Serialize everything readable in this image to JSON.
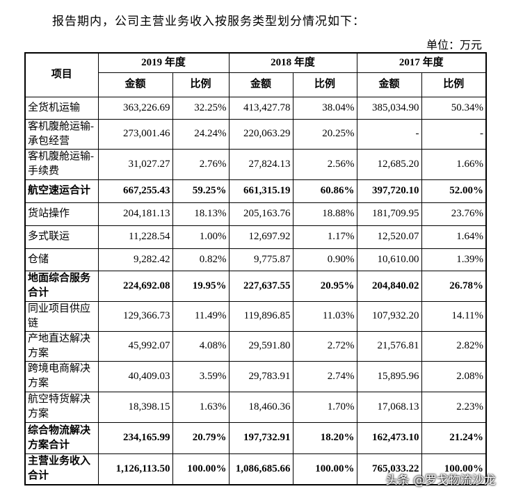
{
  "header": {
    "intro": "报告期内，公司主营业务收入按服务类型划分情况如下：",
    "unit": "单位：万元"
  },
  "table": {
    "group_header": [
      "项目",
      "2019 年度",
      "2018 年度",
      "2017 年度"
    ],
    "sub_header": [
      "金额",
      "比例",
      "金额",
      "比例",
      "金额",
      "比例"
    ],
    "rows": [
      [
        "全货机运输",
        "363,226.69",
        "32.25%",
        "413,427.78",
        "38.04%",
        "385,034.90",
        "50.34%"
      ],
      [
        "客机腹舱运输-承包经营",
        "273,001.46",
        "24.24%",
        "220,063.29",
        "20.25%",
        "-",
        "-"
      ],
      [
        "客机腹舱运输-手续费",
        "31,027.27",
        "2.76%",
        "27,824.13",
        "2.56%",
        "12,685.20",
        "1.66%"
      ],
      [
        "航空速运合计",
        "667,255.43",
        "59.25%",
        "661,315.19",
        "60.86%",
        "397,720.10",
        "52.00%"
      ],
      [
        "货站操作",
        "204,181.13",
        "18.13%",
        "205,163.76",
        "18.88%",
        "181,709.95",
        "23.76%"
      ],
      [
        "多式联运",
        "11,228.54",
        "1.00%",
        "12,697.92",
        "1.17%",
        "12,520.07",
        "1.64%"
      ],
      [
        "仓储",
        "9,282.42",
        "0.82%",
        "9,775.87",
        "0.90%",
        "10,610.00",
        "1.39%"
      ],
      [
        "地面综合服务合计",
        "224,692.08",
        "19.95%",
        "227,637.55",
        "20.95%",
        "204,840.02",
        "26.78%"
      ],
      [
        "同业项目供应链",
        "129,366.73",
        "11.49%",
        "119,896.85",
        "11.03%",
        "107,932.20",
        "14.11%"
      ],
      [
        "产地直达解决方案",
        "45,992.07",
        "4.08%",
        "29,591.80",
        "2.72%",
        "21,576.81",
        "2.82%"
      ],
      [
        "跨境电商解决方案",
        "40,409.03",
        "3.59%",
        "29,783.91",
        "2.74%",
        "15,895.96",
        "2.08%"
      ],
      [
        "航空特货解决方案",
        "18,398.15",
        "1.63%",
        "18,460.36",
        "1.70%",
        "17,068.13",
        "2.23%"
      ],
      [
        "综合物流解决方案合计",
        "234,165.99",
        "20.79%",
        "197,732.91",
        "18.20%",
        "162,473.10",
        "21.24%"
      ],
      [
        "主营业务收入合计",
        "1,126,113.50",
        "100.00%",
        "1,086,685.66",
        "100.00%",
        "765,033.22",
        "100.00%"
      ]
    ]
  },
  "watermark": "头条 @罗戈物流沙龙"
}
